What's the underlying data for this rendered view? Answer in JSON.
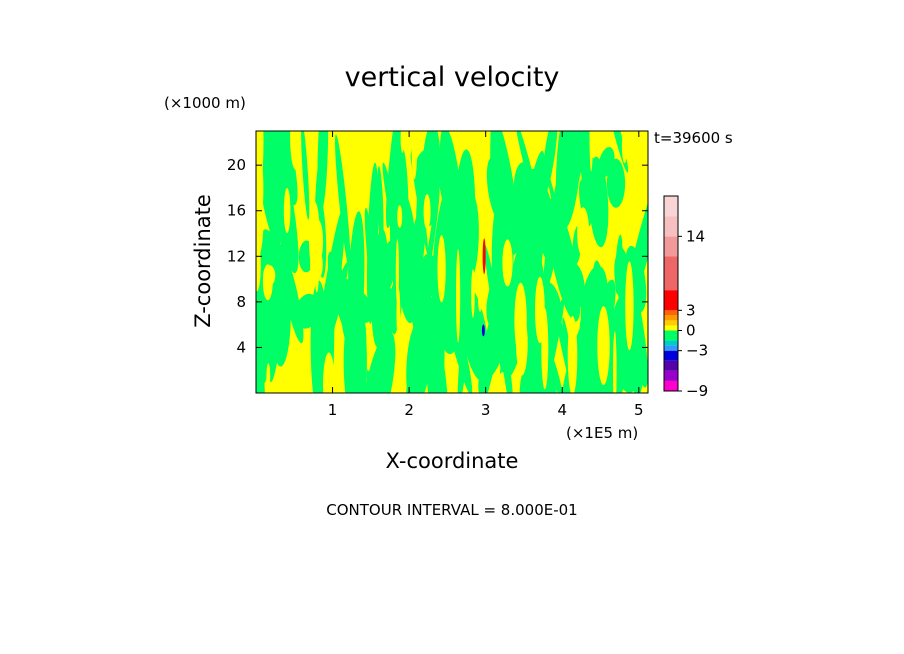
{
  "chart_data": {
    "type": "heatmap",
    "title": "vertical velocity",
    "xlabel": "X-coordinate",
    "ylabel": "Z-coordinate",
    "x_unit": "(×1E5 m)",
    "y_unit": "(×1000 m)",
    "time_label": "t=39600 s",
    "footer": "CONTOUR INTERVAL = 8.000E-01",
    "xlim": [
      0,
      5.12
    ],
    "ylim": [
      0,
      23
    ],
    "x_ticks": [
      "1",
      "2",
      "3",
      "4",
      "5"
    ],
    "y_ticks": [
      "4",
      "8",
      "12",
      "16",
      "20"
    ],
    "x_tick_values": [
      1,
      2,
      3,
      4,
      5
    ],
    "y_tick_values": [
      4,
      8,
      12,
      16,
      20
    ],
    "background_color": "#ffff00",
    "field_colors": [
      "#ffff00",
      "#00ff66"
    ],
    "colorbar": {
      "min": -9,
      "max": 20,
      "levels": [
        -9,
        -7.5,
        -6,
        -4.5,
        -3,
        -2.25,
        -1.5,
        -0.75,
        0,
        0.75,
        1.5,
        2.25,
        3,
        6,
        11,
        14,
        17,
        20
      ],
      "colors": [
        "#ff00cc",
        "#9900cc",
        "#5500aa",
        "#0000dd",
        "#3399ff",
        "#00cccc",
        "#00ff66",
        "#00ff66",
        "#ffff00",
        "#ffcc00",
        "#ff9900",
        "#ff6600",
        "#ff0000",
        "#ee6666",
        "#f29a9a",
        "#f6c0c0",
        "#f8d4d4"
      ],
      "tick_labels": [
        "14",
        "3",
        "0",
        "−3",
        "−9"
      ],
      "tick_values": [
        14,
        3,
        0,
        -3,
        -9
      ]
    }
  }
}
